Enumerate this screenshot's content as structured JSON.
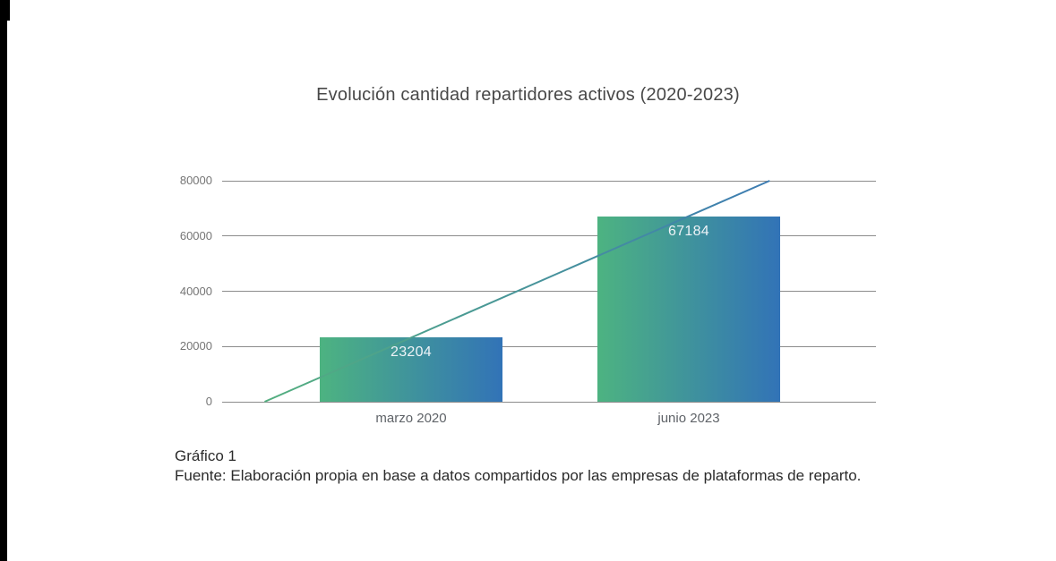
{
  "page": {
    "caption_label": "Gráfico 1",
    "caption_source": "Fuente: Elaboración propia en base a datos compartidos por las empresas de plataformas de reparto."
  },
  "chart_data": {
    "type": "bar",
    "title": "Evolución cantidad repartidores activos (2020-2023)",
    "categories": [
      "marzo 2020",
      "junio 2023"
    ],
    "values": [
      23204,
      67184
    ],
    "bar_labels": [
      "23204",
      "67184"
    ],
    "xlabel": "",
    "ylabel": "",
    "ylim": [
      0,
      80000
    ],
    "yticks": [
      0,
      20000,
      40000,
      60000,
      80000
    ],
    "grid": true,
    "legend": "none",
    "trendline": {
      "through_points": [
        [
          0,
          23204
        ],
        [
          1,
          67184
        ]
      ],
      "clipped_to_ylim": true
    },
    "colors": {
      "bar_gradient_start": "#4db381",
      "bar_gradient_end": "#3273b7",
      "trendline_start": "#53ae7f",
      "trendline_end": "#3d7cb2",
      "gridline": "#8c8c8c",
      "y_tick_label": "#757575",
      "category_label": "#5f6368",
      "value_label": "#eef3f7",
      "title": "#484848",
      "caption": "#2b2b2b"
    }
  }
}
